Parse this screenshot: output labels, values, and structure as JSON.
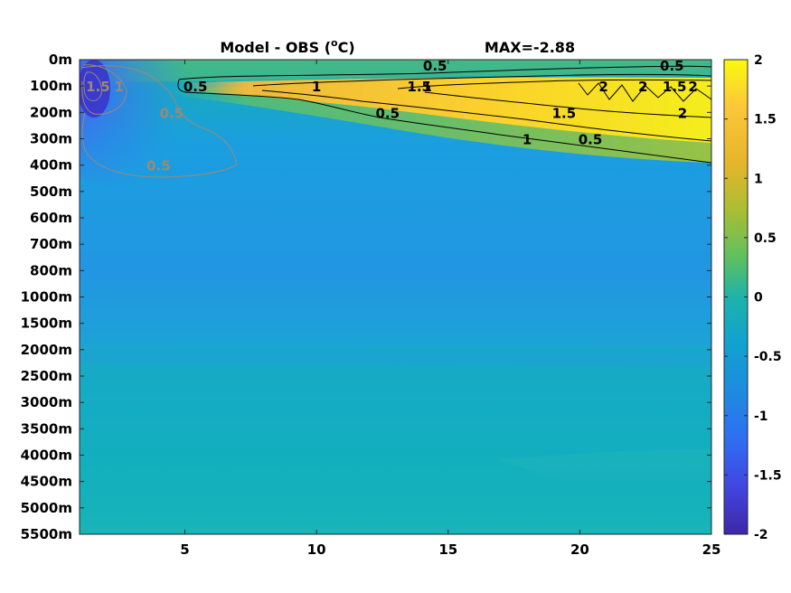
{
  "chart_data": {
    "type": "heatmap",
    "title_prefix": "Model - OBS (",
    "title_unit_sup": "o",
    "title_unit_suffix": "C)",
    "max_label": "MAX=-2.88",
    "x": [
      1,
      25
    ],
    "x_ticks": [
      "5",
      "10",
      "15",
      "20",
      "25"
    ],
    "x_tick_values": [
      5,
      10,
      15,
      20,
      25
    ],
    "y_tick_labels": [
      "0m",
      "100m",
      "200m",
      "300m",
      "400m",
      "500m",
      "600m",
      "700m",
      "800m",
      "1000m",
      "1500m",
      "2000m",
      "2500m",
      "3000m",
      "3500m",
      "4000m",
      "4500m",
      "5000m",
      "5500m"
    ],
    "colorbar": {
      "range": [
        -2,
        2
      ],
      "ticks": [
        "2",
        "1.5",
        "1",
        "0.5",
        "0",
        "-0.5",
        "-1",
        "-1.5",
        "-2"
      ],
      "tick_values": [
        2,
        1.5,
        1,
        0.5,
        0,
        -0.5,
        -1,
        -1.5,
        -2
      ],
      "colormap": "parula"
    },
    "contours": {
      "positive_color": "#000000",
      "negative_color": "#9a8a74",
      "labels": [
        {
          "text": "0.5",
          "x": 5.4,
          "depth": "100m"
        },
        {
          "text": "0.5",
          "x": 14.5,
          "depth": "0m"
        },
        {
          "text": "0.5",
          "x": 23.5,
          "depth": "0m"
        },
        {
          "text": "1",
          "x": 14.2,
          "depth": "100m"
        },
        {
          "text": "1.5",
          "x": 13.9,
          "depth": "100m"
        },
        {
          "text": "1",
          "x": 10.0,
          "depth": "100m"
        },
        {
          "text": "0.5",
          "x": 12.7,
          "depth": "200m"
        },
        {
          "text": "2",
          "x": 20.9,
          "depth": "100m"
        },
        {
          "text": "2",
          "x": 22.4,
          "depth": "100m"
        },
        {
          "text": "1.5",
          "x": 23.6,
          "depth": "100m"
        },
        {
          "text": "2",
          "x": 24.3,
          "depth": "100m"
        },
        {
          "text": "2",
          "x": 23.9,
          "depth": "200m"
        },
        {
          "text": "1.5",
          "x": 19.4,
          "depth": "200m"
        },
        {
          "text": "1",
          "x": 18.0,
          "depth": "300m"
        },
        {
          "text": "0.5",
          "x": 20.4,
          "depth": "300m"
        },
        {
          "text": "-0.5",
          "x": 4.5,
          "depth": "200m"
        },
        {
          "text": "-0.5",
          "x": 4.0,
          "depth": "400m"
        },
        {
          "text": "-1",
          "x": 2.5,
          "depth": "100m"
        },
        {
          "text": "-1.5",
          "x": 1.7,
          "depth": "100m"
        }
      ]
    }
  }
}
